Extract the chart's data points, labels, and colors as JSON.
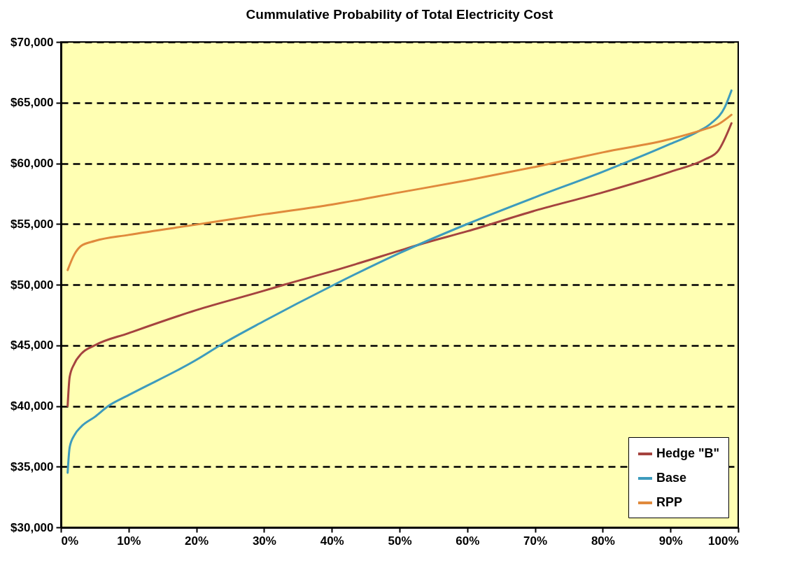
{
  "chart_data": {
    "type": "line",
    "title": "Cummulative Probability of Total Electricity Cost",
    "xlim": [
      0,
      100
    ],
    "xticks": [
      {
        "value": 0,
        "label": "0%"
      },
      {
        "value": 10,
        "label": "10%"
      },
      {
        "value": 20,
        "label": "20%"
      },
      {
        "value": 30,
        "label": "30%"
      },
      {
        "value": 40,
        "label": "40%"
      },
      {
        "value": 50,
        "label": "50%"
      },
      {
        "value": 60,
        "label": "60%"
      },
      {
        "value": 70,
        "label": "70%"
      },
      {
        "value": 80,
        "label": "80%"
      },
      {
        "value": 90,
        "label": "90%"
      },
      {
        "value": 100,
        "label": "100%"
      }
    ],
    "ylim": [
      30000,
      70000
    ],
    "yticks": [
      {
        "value": 30000,
        "label": "$30,000"
      },
      {
        "value": 35000,
        "label": "$35,000"
      },
      {
        "value": 40000,
        "label": "$40,000"
      },
      {
        "value": 45000,
        "label": "$45,000"
      },
      {
        "value": 50000,
        "label": "$50,000"
      },
      {
        "value": 55000,
        "label": "$55,000"
      },
      {
        "value": 60000,
        "label": "$60,000"
      },
      {
        "value": 65000,
        "label": "$65,000"
      },
      {
        "value": 70000,
        "label": "$70,000"
      }
    ],
    "grid": "y",
    "legend": "bottom right",
    "line_style": "solid",
    "marker": "none",
    "series": [
      {
        "name": "Hedge \"B\"",
        "color": "#a5433f",
        "x": [
          1,
          1.3,
          2,
          3,
          5,
          10,
          20,
          30,
          33,
          40,
          50,
          53.5,
          60,
          70,
          80,
          90,
          95,
          97,
          99
        ],
        "values": [
          40000,
          42400,
          43500,
          44300,
          45000,
          46000,
          47900,
          49500,
          50000,
          51100,
          52800,
          53400,
          54400,
          56100,
          57600,
          59300,
          60300,
          61000,
          63300
        ]
      },
      {
        "name": "Base",
        "color": "#3d9bbd",
        "x": [
          1,
          1.3,
          2,
          3,
          5,
          7,
          10,
          20,
          23.5,
          30,
          40,
          50,
          60,
          70,
          80,
          90,
          94,
          96,
          98,
          99
        ],
        "values": [
          34500,
          36600,
          37600,
          38300,
          39100,
          40000,
          40900,
          43800,
          45000,
          47000,
          49900,
          52600,
          55000,
          57200,
          59300,
          61600,
          62600,
          63300,
          64600,
          66000
        ]
      },
      {
        "name": "RPP",
        "color": "#e08a3c",
        "x": [
          1,
          2,
          3,
          5,
          10,
          20,
          30,
          40,
          50,
          60,
          70,
          80,
          90,
          95,
          97,
          99
        ],
        "values": [
          51200,
          52500,
          53200,
          53600,
          54100,
          54950,
          55800,
          56600,
          57600,
          58600,
          59700,
          60900,
          62000,
          62800,
          63200,
          64000
        ]
      }
    ]
  }
}
